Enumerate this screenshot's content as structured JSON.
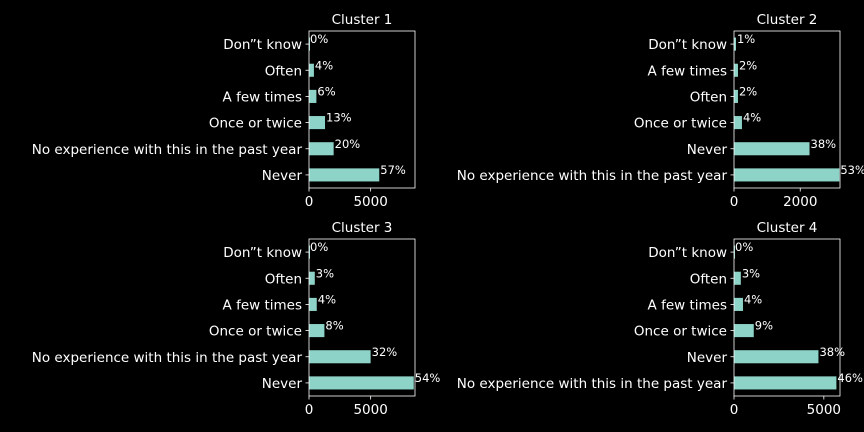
{
  "theme": {
    "background": "#000000",
    "foreground": "#ffffff",
    "bar_color": "#8dd3c7"
  },
  "chart_data": [
    {
      "type": "bar",
      "orientation": "horizontal",
      "title": "Cluster 1",
      "categories": [
        "Never",
        "No experience with this in the past year",
        "Once or twice",
        "A few times",
        "Often",
        "Don”t know"
      ],
      "values": [
        5700,
        2000,
        1300,
        600,
        400,
        0
      ],
      "labels": [
        "57%",
        "20%",
        "13%",
        "6%",
        "4%",
        "0%"
      ],
      "xlim": [
        0,
        8600
      ],
      "xticks": [
        0,
        5000
      ],
      "xtick_labels": [
        "0",
        "5000"
      ]
    },
    {
      "type": "bar",
      "orientation": "horizontal",
      "title": "Cluster 2",
      "categories": [
        "No experience with this in the past year",
        "Never",
        "Once or twice",
        "Often",
        "A few times",
        "Don”t know"
      ],
      "values": [
        3180,
        2280,
        240,
        120,
        120,
        60
      ],
      "labels": [
        "53%",
        "38%",
        "4%",
        "2%",
        "2%",
        "1%"
      ],
      "xlim": [
        0,
        3200
      ],
      "xticks": [
        0,
        2000
      ],
      "xtick_labels": [
        "0",
        "2000"
      ]
    },
    {
      "type": "bar",
      "orientation": "horizontal",
      "title": "Cluster 3",
      "categories": [
        "Never",
        "No experience with this in the past year",
        "Once or twice",
        "A few times",
        "Often",
        "Don”t know"
      ],
      "values": [
        8500,
        5000,
        1250,
        630,
        470,
        0
      ],
      "labels": [
        "54%",
        "32%",
        "8%",
        "4%",
        "3%",
        "0%"
      ],
      "xlim": [
        0,
        8600
      ],
      "xticks": [
        0,
        5000
      ],
      "xtick_labels": [
        "0",
        "5000"
      ]
    },
    {
      "type": "bar",
      "orientation": "horizontal",
      "title": "Cluster 4",
      "categories": [
        "No experience with this in the past year",
        "Never",
        "Once or twice",
        "A few times",
        "Often",
        "Don”t know"
      ],
      "values": [
        5700,
        4700,
        1100,
        500,
        380,
        0
      ],
      "labels": [
        "46%",
        "38%",
        "9%",
        "4%",
        "3%",
        "0%"
      ],
      "xlim": [
        0,
        5900
      ],
      "xticks": [
        0,
        5000
      ],
      "xtick_labels": [
        "0",
        "5000"
      ]
    }
  ]
}
